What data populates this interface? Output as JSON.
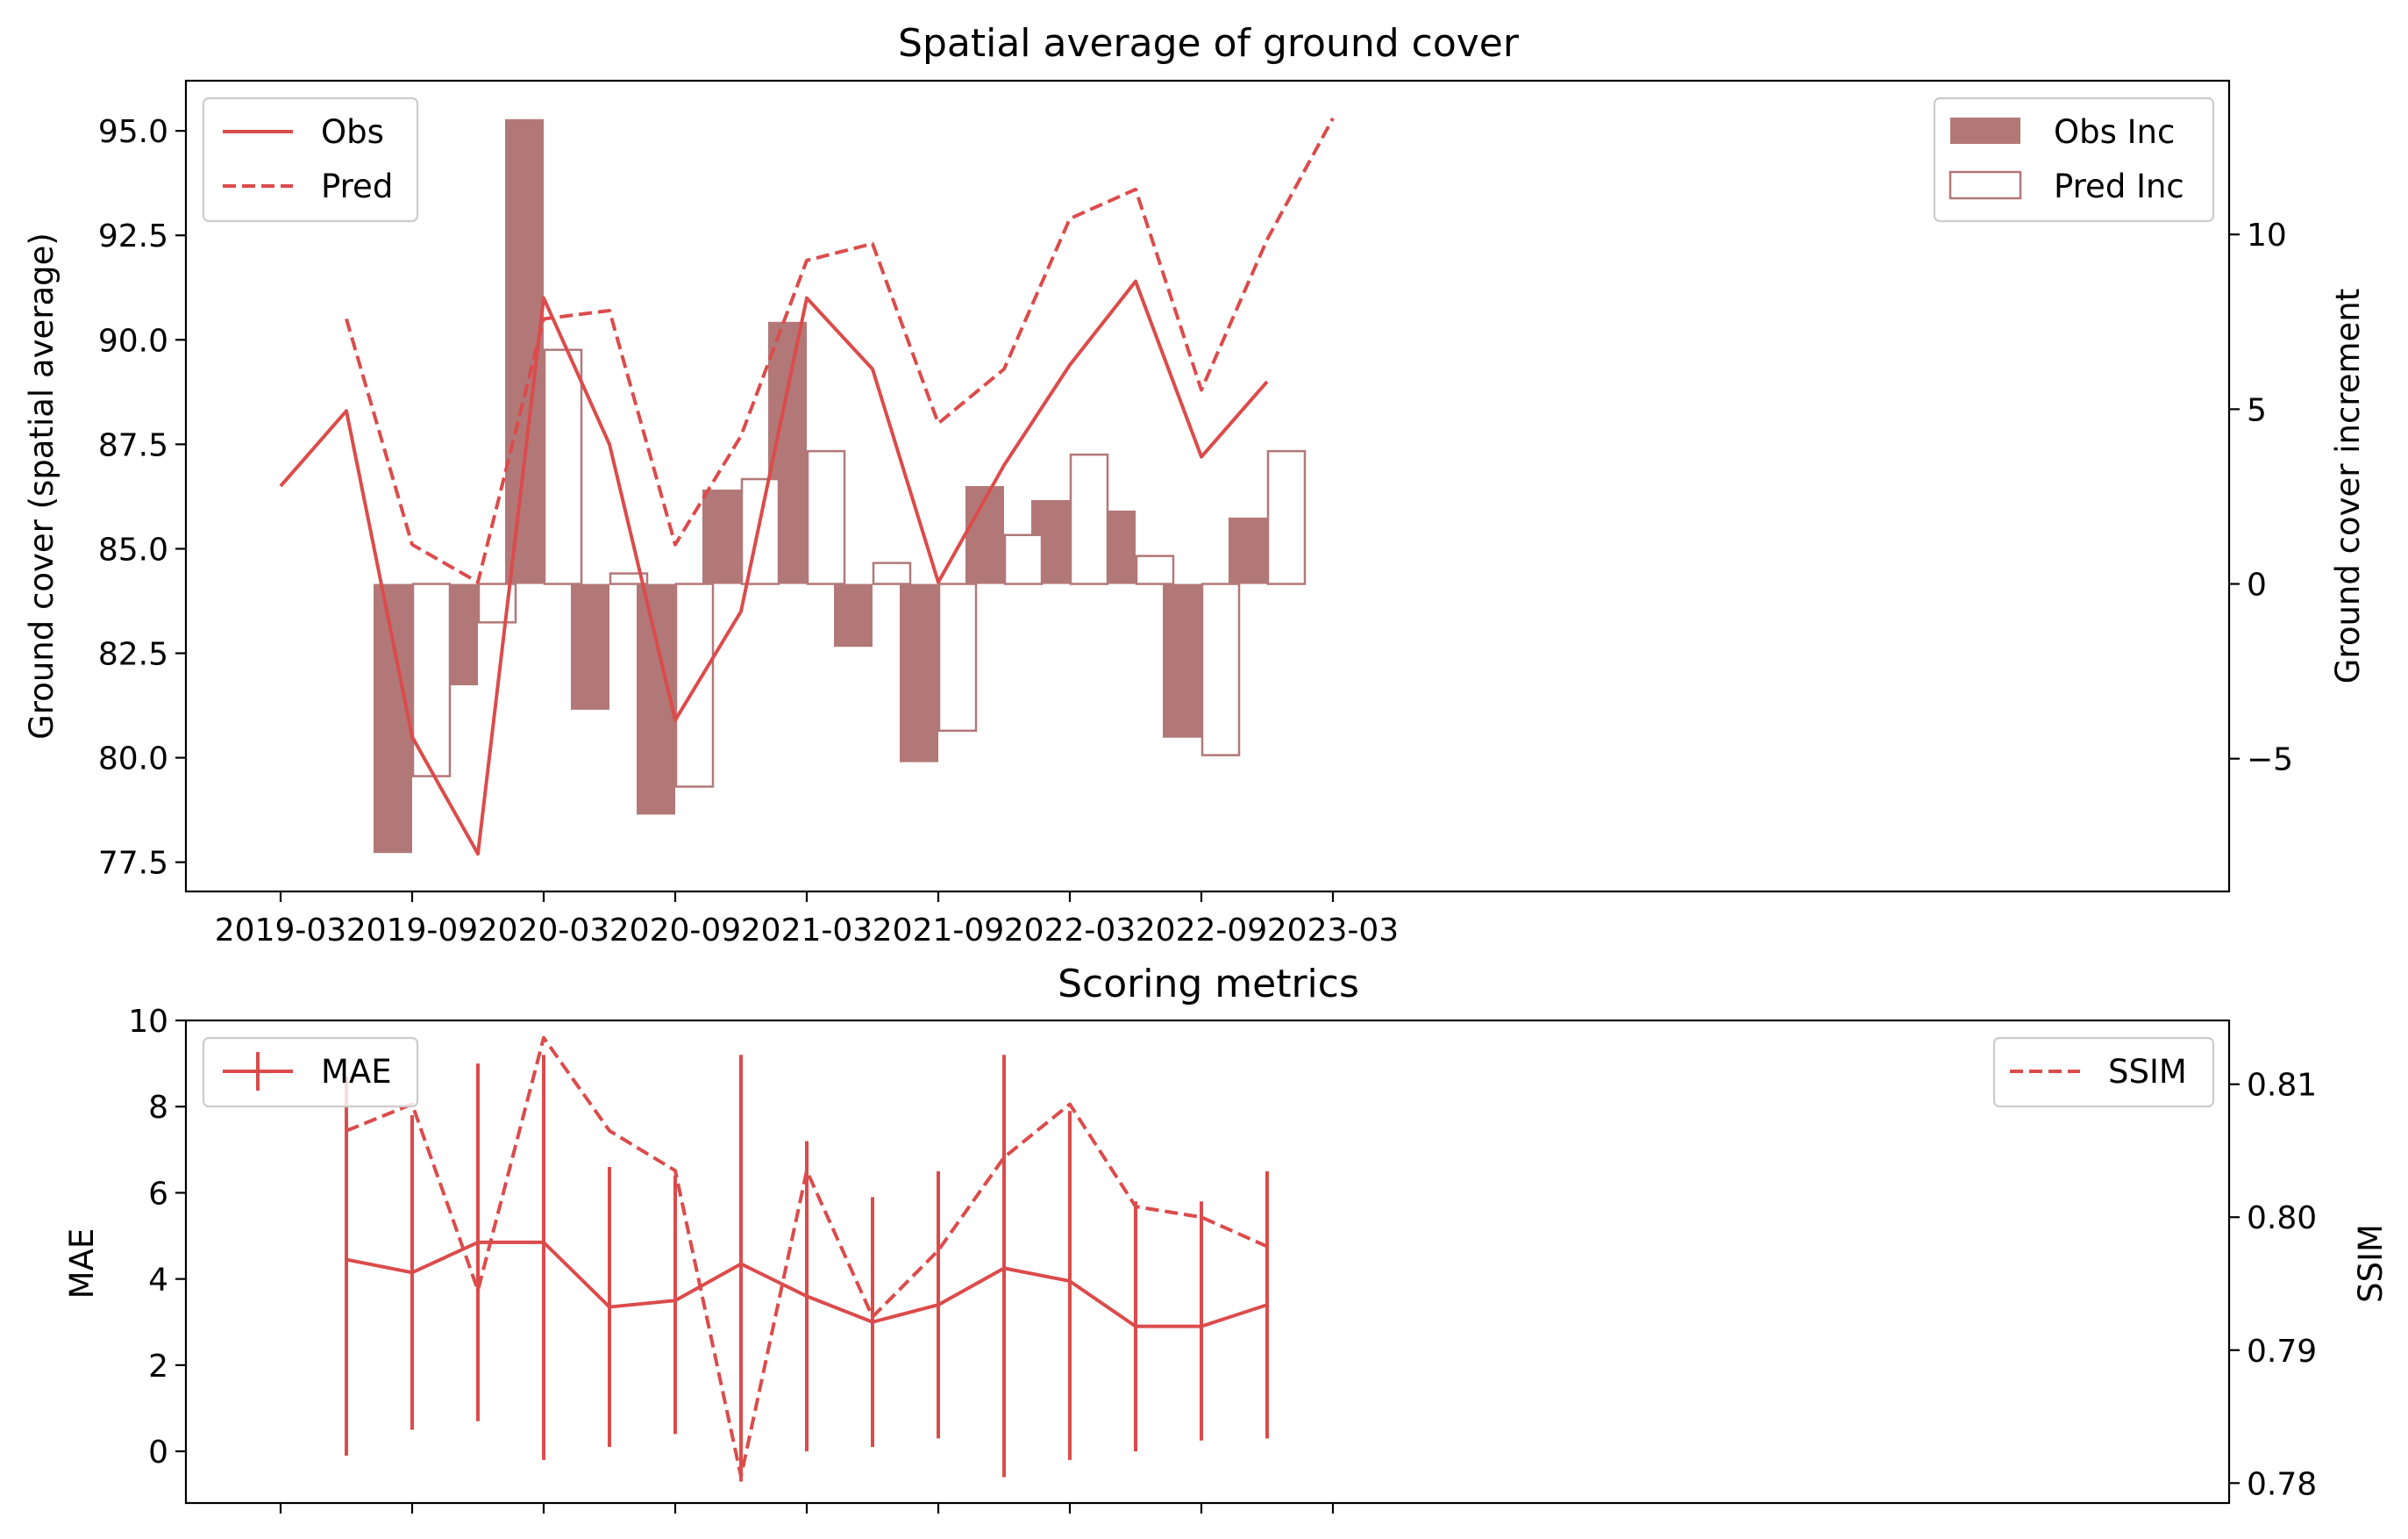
{
  "colors": {
    "line": "#dc4b4b",
    "bar": "#b27878",
    "bar_edge": "#b27878"
  },
  "chart_data": [
    {
      "type": "bar",
      "title": "Spatial average of ground cover",
      "ylabel": "Ground cover (spatial average)",
      "y2label": "Ground cover increment",
      "xlabel": "",
      "x_tick_labels": [
        "2019-03",
        "2019-09",
        "2020-03",
        "2020-09",
        "2021-03",
        "2021-09",
        "2022-03",
        "2022-09",
        "2023-03"
      ],
      "ylim": [
        76.8,
        96.2
      ],
      "y_ticks": [
        77.5,
        80.0,
        82.5,
        85.0,
        87.5,
        90.0,
        92.5,
        95.0
      ],
      "y_tick_labels": [
        "77.5",
        "80.0",
        "82.5",
        "85.0",
        "87.5",
        "90.0",
        "92.5",
        "95.0"
      ],
      "y2lim": [
        -8.8,
        14.4
      ],
      "y2_ticks": [
        -5,
        0,
        5,
        10
      ],
      "y2_tick_labels": [
        "−5",
        "0",
        "5",
        "10"
      ],
      "x_dates": [
        "2019-03",
        "2019-06",
        "2019-09",
        "2019-12",
        "2020-03",
        "2020-06",
        "2020-09",
        "2020-12",
        "2021-03",
        "2021-06",
        "2021-09",
        "2021-12",
        "2022-03",
        "2022-06",
        "2022-09",
        "2022-12",
        "2023-03"
      ],
      "series": [
        {
          "name": "Obs",
          "style": "solid",
          "axis": "left",
          "x": [
            "2019-03",
            "2019-06",
            "2019-09",
            "2019-12",
            "2020-03",
            "2020-06",
            "2020-09",
            "2020-12",
            "2021-03",
            "2021-06",
            "2021-09",
            "2021-12",
            "2022-03",
            "2022-06",
            "2022-09",
            "2022-12"
          ],
          "values": [
            86.5,
            88.3,
            80.5,
            77.7,
            91.0,
            87.5,
            80.9,
            83.5,
            91.0,
            89.3,
            84.2,
            87.0,
            89.4,
            91.4,
            87.2,
            89.0
          ]
        },
        {
          "name": "Pred",
          "style": "dashed",
          "axis": "left",
          "x": [
            "2019-06",
            "2019-09",
            "2019-12",
            "2020-03",
            "2020-06",
            "2020-09",
            "2020-12",
            "2021-03",
            "2021-06",
            "2021-09",
            "2021-12",
            "2022-03",
            "2022-06",
            "2022-09",
            "2022-12",
            "2023-03"
          ],
          "values": [
            90.5,
            85.1,
            84.2,
            90.5,
            90.7,
            85.1,
            87.7,
            91.9,
            92.3,
            88.0,
            89.3,
            92.9,
            93.6,
            88.8,
            92.4,
            95.3
          ]
        },
        {
          "name": "Obs Inc",
          "style": "bar-filled",
          "axis": "right",
          "x": [
            "2019-09",
            "2019-12",
            "2020-03",
            "2020-06",
            "2020-09",
            "2020-12",
            "2021-03",
            "2021-06",
            "2021-09",
            "2021-12",
            "2022-03",
            "2022-06",
            "2022-09",
            "2022-12"
          ],
          "values": [
            -7.7,
            -2.9,
            13.3,
            -3.6,
            -6.6,
            2.7,
            7.5,
            -1.8,
            -5.1,
            2.8,
            2.4,
            2.1,
            -4.4,
            1.9
          ]
        },
        {
          "name": "Pred Inc",
          "style": "bar-outline",
          "axis": "right",
          "x": [
            "2019-09",
            "2019-12",
            "2020-03",
            "2020-06",
            "2020-09",
            "2020-12",
            "2021-03",
            "2021-06",
            "2021-09",
            "2021-12",
            "2022-03",
            "2022-06",
            "2022-09",
            "2022-12"
          ],
          "values": [
            -5.5,
            -1.1,
            6.7,
            0.3,
            -5.8,
            3.0,
            3.8,
            0.6,
            -4.2,
            1.4,
            3.7,
            0.8,
            -4.9,
            3.8
          ]
        }
      ],
      "legend_left": "top-left",
      "legend_right": "top-right",
      "grid": false
    },
    {
      "type": "line",
      "title": "Scoring metrics",
      "ylabel": "MAE",
      "y2label": "SSIM",
      "ylim": [
        -1.2,
        10.0
      ],
      "y_ticks": [
        0,
        2,
        4,
        6,
        8,
        10
      ],
      "y_tick_labels": [
        "0",
        "2",
        "4",
        "6",
        "8",
        "10"
      ],
      "y2lim": [
        0.7785,
        0.8148
      ],
      "y2_ticks": [
        0.78,
        0.79,
        0.8,
        0.81
      ],
      "y2_tick_labels": [
        "0.78",
        "0.79",
        "0.80",
        "0.81"
      ],
      "x": [
        "2019-06",
        "2019-09",
        "2019-12",
        "2020-03",
        "2020-06",
        "2020-09",
        "2020-12",
        "2021-03",
        "2021-06",
        "2021-09",
        "2021-12",
        "2022-03",
        "2022-06",
        "2022-09",
        "2022-12"
      ],
      "series": [
        {
          "name": "MAE",
          "style": "solid-errorbar",
          "axis": "left",
          "values": [
            4.45,
            4.15,
            4.85,
            4.85,
            3.35,
            3.5,
            4.35,
            3.6,
            3.0,
            3.4,
            4.25,
            3.95,
            2.9,
            2.9,
            3.4
          ],
          "error_low": [
            -0.1,
            0.5,
            0.7,
            -0.2,
            0.1,
            0.4,
            -0.7,
            0.0,
            0.1,
            0.3,
            -0.6,
            -0.2,
            0.0,
            0.25,
            0.3
          ],
          "error_high": [
            8.7,
            7.8,
            9.0,
            9.2,
            6.6,
            6.4,
            9.2,
            7.2,
            5.9,
            6.5,
            9.2,
            7.9,
            5.8,
            5.8,
            6.5
          ]
        },
        {
          "name": "SSIM",
          "style": "dashed",
          "axis": "right",
          "values": [
            0.8065,
            0.8085,
            0.7945,
            0.8135,
            0.8065,
            0.8035,
            0.7805,
            0.8035,
            0.7925,
            0.7975,
            0.8045,
            0.8085,
            0.8008,
            0.8,
            0.7978
          ]
        }
      ],
      "legend_left": "top-left",
      "legend_right": "top-right",
      "grid": false
    }
  ]
}
